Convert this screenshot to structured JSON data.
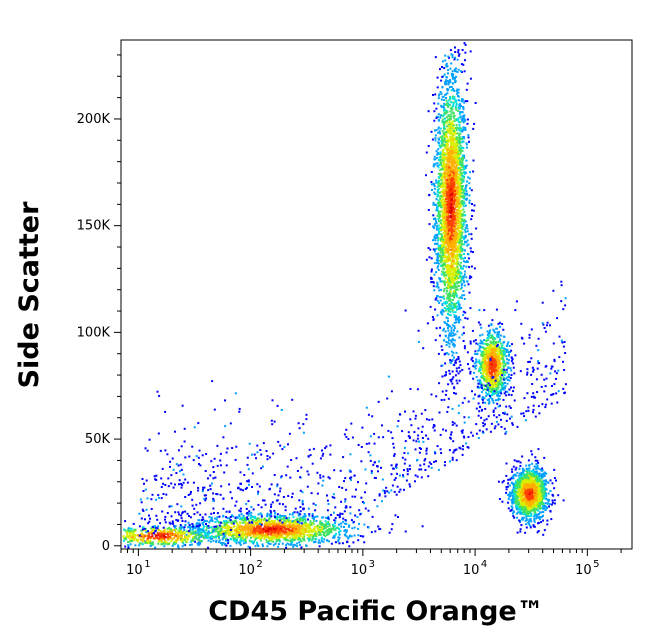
{
  "chart_data": {
    "type": "scatter",
    "title": "",
    "xlabel": "CD45 Pacific Orange™",
    "ylabel": "Side Scatter",
    "x_scale": "log",
    "xlim": [
      7,
      250000
    ],
    "ylim": [
      -1500,
      237000
    ],
    "x_ticks": [
      {
        "value": 10,
        "base": "10",
        "exp": "1"
      },
      {
        "value": 100,
        "base": "10",
        "exp": "2"
      },
      {
        "value": 1000,
        "base": "10",
        "exp": "3"
      },
      {
        "value": 10000,
        "base": "10",
        "exp": "4"
      },
      {
        "value": 100000,
        "base": "10",
        "exp": "5"
      }
    ],
    "y_ticks": [
      {
        "value": 0,
        "label": "0"
      },
      {
        "value": 50000,
        "label": "50K"
      },
      {
        "value": 100000,
        "label": "100K"
      },
      {
        "value": 150000,
        "label": "150K"
      },
      {
        "value": 200000,
        "label": "200K"
      }
    ],
    "density_colormap": [
      "#0000ff",
      "#00a0ff",
      "#00e0e0",
      "#40e060",
      "#d8f000",
      "#ffb000",
      "#ff4000",
      "#e00000"
    ],
    "populations": [
      {
        "x_center": 6000,
        "y_center": 160000,
        "x_spread_decades": 0.07,
        "y_spread": 30000,
        "count": 3000
      },
      {
        "x_center": 14000,
        "y_center": 85000,
        "x_spread_decades": 0.07,
        "y_spread": 8000,
        "count": 900
      },
      {
        "x_center": 30000,
        "y_center": 25000,
        "x_spread_decades": 0.08,
        "y_spread": 6000,
        "count": 1400
      },
      {
        "x_center": 150,
        "y_center": 8000,
        "x_spread_decades": 0.35,
        "y_spread": 3500,
        "count": 1500
      },
      {
        "x_center": 15,
        "y_center": 5000,
        "x_spread_decades": 0.25,
        "y_spread": 2500,
        "count": 500
      }
    ],
    "grid": false,
    "legend": "none"
  }
}
